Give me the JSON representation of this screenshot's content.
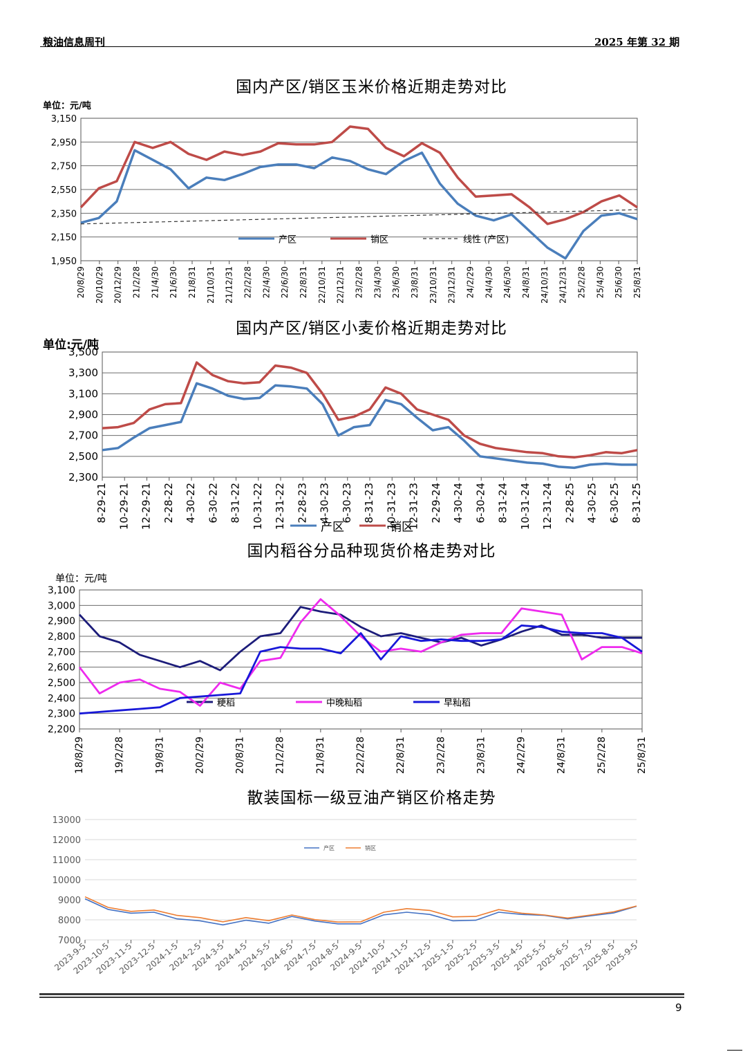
{
  "header": {
    "journal": "粮油信息周刊",
    "issue": "2025 年第 32 期"
  },
  "page_number": "9",
  "chart_data": [
    {
      "id": "corn",
      "type": "line",
      "title": "国内产区/销区玉米价格近期走势对比",
      "unit": "单位：元/吨",
      "ylim": [
        1950,
        3150
      ],
      "yticks": [
        "3,150",
        "2,950",
        "2,750",
        "2,550",
        "2,350",
        "2,150",
        "1,950"
      ],
      "x_labels": [
        "20/8/29",
        "20/10/29",
        "20/12/29",
        "21/2/28",
        "21/4/30",
        "21/6/30",
        "21/8/31",
        "21/10/31",
        "21/12/31",
        "22/2/28",
        "22/4/30",
        "22/6/30",
        "22/8/31",
        "22/10/31",
        "22/12/31",
        "23/2/28",
        "23/4/30",
        "23/6/30",
        "23/8/31",
        "23/10/31",
        "23/12/31",
        "24/2/29",
        "24/4/30",
        "24/6/30",
        "24/8/31",
        "24/10/31",
        "24/12/31",
        "25/2/28",
        "25/4/30",
        "25/6/30",
        "25/8/31"
      ],
      "grid": "horizontal",
      "legend": "inside-bottom",
      "series": [
        {
          "name": "产区",
          "color": "#4a7ebb",
          "values": [
            2270,
            2310,
            2450,
            2880,
            2800,
            2720,
            2560,
            2650,
            2630,
            2680,
            2740,
            2760,
            2760,
            2730,
            2820,
            2790,
            2720,
            2680,
            2790,
            2860,
            2600,
            2430,
            2330,
            2290,
            2340,
            2200,
            2060,
            1970,
            2200,
            2330,
            2350,
            2300
          ]
        },
        {
          "name": "销区",
          "color": "#be4b48",
          "values": [
            2400,
            2560,
            2620,
            2950,
            2900,
            2950,
            2850,
            2800,
            2870,
            2840,
            2870,
            2940,
            2930,
            2930,
            2950,
            3080,
            3060,
            2900,
            2830,
            2940,
            2860,
            2650,
            2490,
            2500,
            2510,
            2400,
            2260,
            2300,
            2360,
            2450,
            2500,
            2400
          ]
        },
        {
          "name": "线性 (产区)",
          "color": "#333333",
          "dashed": true,
          "values": [
            2260,
            2380
          ]
        }
      ]
    },
    {
      "id": "wheat",
      "type": "line",
      "title": "国内产区/销区小麦价格近期走势对比",
      "unit": "单位:元/吨",
      "ylim": [
        2300,
        3500
      ],
      "yticks": [
        "3,500",
        "3,300",
        "3,100",
        "2,900",
        "2,700",
        "2,500",
        "2,300"
      ],
      "x_labels": [
        "8-29-21",
        "10-29-21",
        "12-29-21",
        "2-28-22",
        "4-30-22",
        "6-30-22",
        "8-31-22",
        "10-31-22",
        "12-31-22",
        "2-28-23",
        "4-30-23",
        "6-30-23",
        "8-31-23",
        "10-31-23",
        "12-31-23",
        "2-29-24",
        "4-30-24",
        "6-30-24",
        "8-31-24",
        "10-31-24",
        "12-31-24",
        "2-28-25",
        "4-30-25",
        "6-30-25",
        "8-31-25"
      ],
      "grid": "horizontal",
      "legend": "bottom",
      "series": [
        {
          "name": "产区",
          "color": "#4a7ebb",
          "values": [
            2560,
            2580,
            2680,
            2770,
            2800,
            2830,
            3200,
            3150,
            3080,
            3050,
            3060,
            3180,
            3170,
            3150,
            3000,
            2700,
            2780,
            2800,
            3040,
            3000,
            2870,
            2750,
            2780,
            2650,
            2500,
            2480,
            2460,
            2440,
            2430,
            2400,
            2390,
            2420,
            2430,
            2420,
            2420
          ]
        },
        {
          "name": "销区",
          "color": "#be4b48",
          "values": [
            2770,
            2780,
            2820,
            2950,
            3000,
            3010,
            3400,
            3280,
            3220,
            3200,
            3210,
            3370,
            3350,
            3300,
            3100,
            2850,
            2880,
            2950,
            3160,
            3100,
            2950,
            2900,
            2850,
            2700,
            2620,
            2580,
            2560,
            2540,
            2530,
            2500,
            2490,
            2510,
            2540,
            2530,
            2560
          ]
        }
      ]
    },
    {
      "id": "rice",
      "type": "line",
      "title": "国内稻谷分品种现货价格走势对比",
      "unit": "单位：元/吨",
      "ylim": [
        2200,
        3100
      ],
      "yticks": [
        "3,100",
        "3,000",
        "2,900",
        "2,800",
        "2,700",
        "2,600",
        "2,500",
        "2,400",
        "2,300",
        "2,200"
      ],
      "x_labels": [
        "18/8/29",
        "19/2/28",
        "19/8/31",
        "20/2/29",
        "20/8/31",
        "21/2/28",
        "21/8/31",
        "22/2/28",
        "22/8/31",
        "23/2/28",
        "23/8/31",
        "24/2/29",
        "24/8/31",
        "25/2/28",
        "25/8/31"
      ],
      "grid": "horizontal",
      "legend": "inside",
      "series": [
        {
          "name": "粳稻",
          "color": "#1c1c7a",
          "values": [
            2940,
            2800,
            2760,
            2680,
            2640,
            2600,
            2640,
            2580,
            2700,
            2800,
            2820,
            2990,
            2960,
            2940,
            2860,
            2800,
            2820,
            2790,
            2760,
            2790,
            2740,
            2780,
            2830,
            2870,
            2810,
            2810,
            2790,
            2790,
            2790
          ]
        },
        {
          "name": "中晚籼稻",
          "color": "#ee2aee",
          "values": [
            2600,
            2430,
            2500,
            2520,
            2460,
            2440,
            2350,
            2500,
            2460,
            2640,
            2660,
            2890,
            3040,
            2930,
            2800,
            2700,
            2720,
            2700,
            2760,
            2810,
            2820,
            2820,
            2980,
            2960,
            2940,
            2650,
            2730,
            2730,
            2690
          ]
        },
        {
          "name": "早籼稻",
          "color": "#1818d8",
          "values": [
            2300,
            2310,
            2320,
            2330,
            2340,
            2400,
            2410,
            2420,
            2430,
            2700,
            2730,
            2720,
            2720,
            2690,
            2820,
            2650,
            2800,
            2770,
            2780,
            2770,
            2770,
            2780,
            2870,
            2860,
            2830,
            2820,
            2820,
            2790,
            2700
          ]
        }
      ]
    },
    {
      "id": "soyoil",
      "type": "line",
      "title": "散装国标一级豆油产销区价格走势",
      "unit": "",
      "ylim": [
        7000,
        13000
      ],
      "yticks": [
        "13000",
        "12000",
        "11000",
        "10000",
        "9000",
        "8000",
        "7000"
      ],
      "x_labels": [
        "2023-9-5",
        "2023-10-5",
        "2023-11-5",
        "2023-12-5",
        "2024-1-5",
        "2024-2-5",
        "2024-3-5",
        "2024-4-5",
        "2024-5-5",
        "2024-6-5",
        "2024-7-5",
        "2024-8-5",
        "2024-9-5",
        "2024-10-5",
        "2024-11-5",
        "2024-12-5",
        "2025-1-5",
        "2025-2-5",
        "2025-3-5",
        "2025-4-5",
        "2025-5-5",
        "2025-6-5",
        "2025-7-5",
        "2025-8-5",
        "2025-9-5"
      ],
      "grid": "horizontal",
      "legend": "top",
      "series": [
        {
          "name": "产区",
          "color": "#4472c4",
          "values": [
            9050,
            8520,
            8330,
            8380,
            8050,
            7950,
            7750,
            7980,
            7830,
            8170,
            7940,
            7800,
            7800,
            8250,
            8380,
            8270,
            7950,
            7980,
            8380,
            8270,
            8220,
            8050,
            8200,
            8340,
            8680
          ]
        },
        {
          "name": "销区",
          "color": "#ed7d31",
          "values": [
            9150,
            8620,
            8420,
            8490,
            8220,
            8110,
            7900,
            8110,
            7960,
            8240,
            8010,
            7890,
            7900,
            8380,
            8560,
            8470,
            8150,
            8170,
            8510,
            8330,
            8240,
            8090,
            8240,
            8400,
            8690
          ]
        }
      ]
    }
  ]
}
